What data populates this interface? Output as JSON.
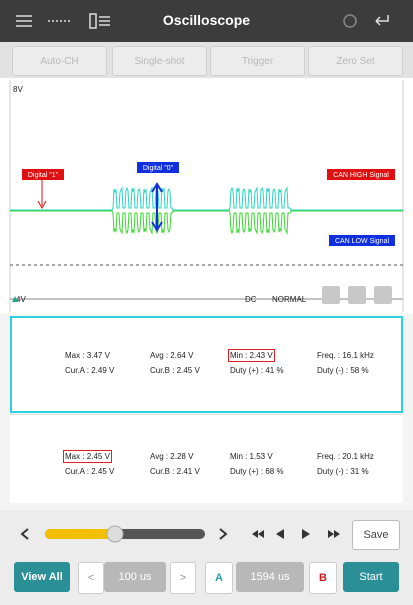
{
  "header": {
    "title": "Oscilloscope"
  },
  "toolbar": {
    "buttons": [
      "Auto-CH",
      "Single-shot",
      "Trigger",
      "Zero Set"
    ]
  },
  "scope": {
    "top_label": "8V",
    "bottom_label": "4V",
    "digital_one": "Digital \"1\"",
    "digital_zero": "Digital \"0\"",
    "can_high": "CAN HIGH Signal",
    "can_low": "CAN LOW Signal",
    "coupling": "DC",
    "mode": "NORMAL"
  },
  "panels": [
    {
      "rows": [
        [
          "Max : 3.47 V",
          "Avg : 2.64 V",
          "Min : 2.43 V",
          "Freq. : 16.1 kHz"
        ],
        [
          "Cur.A : 2.49 V",
          "Cur.B : 2.45 V",
          "Duty (+) : 41 %",
          "Duty (-) : 58 %"
        ]
      ]
    },
    {
      "rows": [
        [
          "Max : 2.45 V",
          "Avg : 2.28 V",
          "Min : 1.53 V",
          "Freq. : 20.1 kHz"
        ],
        [
          "Cur.A : 2.45 V",
          "Cur.B : 2.41 V",
          "Duty (+) : 68 %",
          "Duty (-) : 31 %"
        ]
      ]
    }
  ],
  "controls": {
    "save": "Save",
    "view_all": "View All",
    "time_div": "100 us",
    "cursor_a": "A",
    "cursor_time": "1594 us",
    "cursor_b": "B",
    "start": "Start"
  }
}
